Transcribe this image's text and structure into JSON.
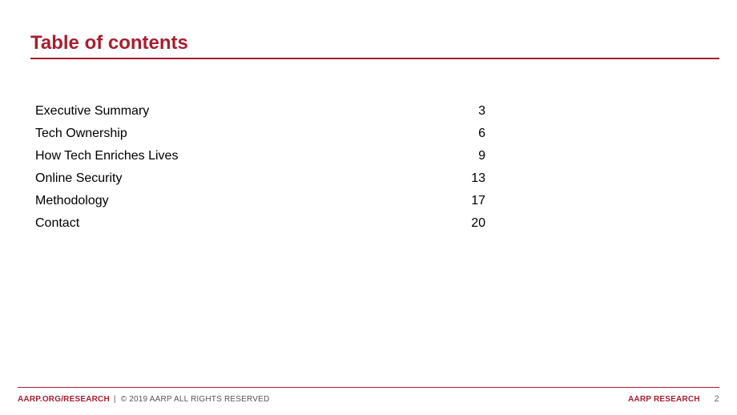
{
  "colors": {
    "accent": "#a71e2f",
    "footer_rule": "#a71e2f",
    "text": "#000000",
    "footer_text": "#555555"
  },
  "title": "Table of contents",
  "toc": {
    "entries": [
      {
        "label": "Executive Summary",
        "page": "3"
      },
      {
        "label": "Tech Ownership",
        "page": "6"
      },
      {
        "label": "How Tech Enriches Lives",
        "page": "9"
      },
      {
        "label": "Online Security",
        "page": "13"
      },
      {
        "label": "Methodology",
        "page": "17"
      },
      {
        "label": "Contact",
        "page": "20"
      }
    ]
  },
  "footer": {
    "site": "AARP.ORG/RESEARCH",
    "separator": "|",
    "copyright": "© 2019 AARP ALL RIGHTS RESERVED",
    "brand": "AARP RESEARCH",
    "page_number": "2"
  }
}
